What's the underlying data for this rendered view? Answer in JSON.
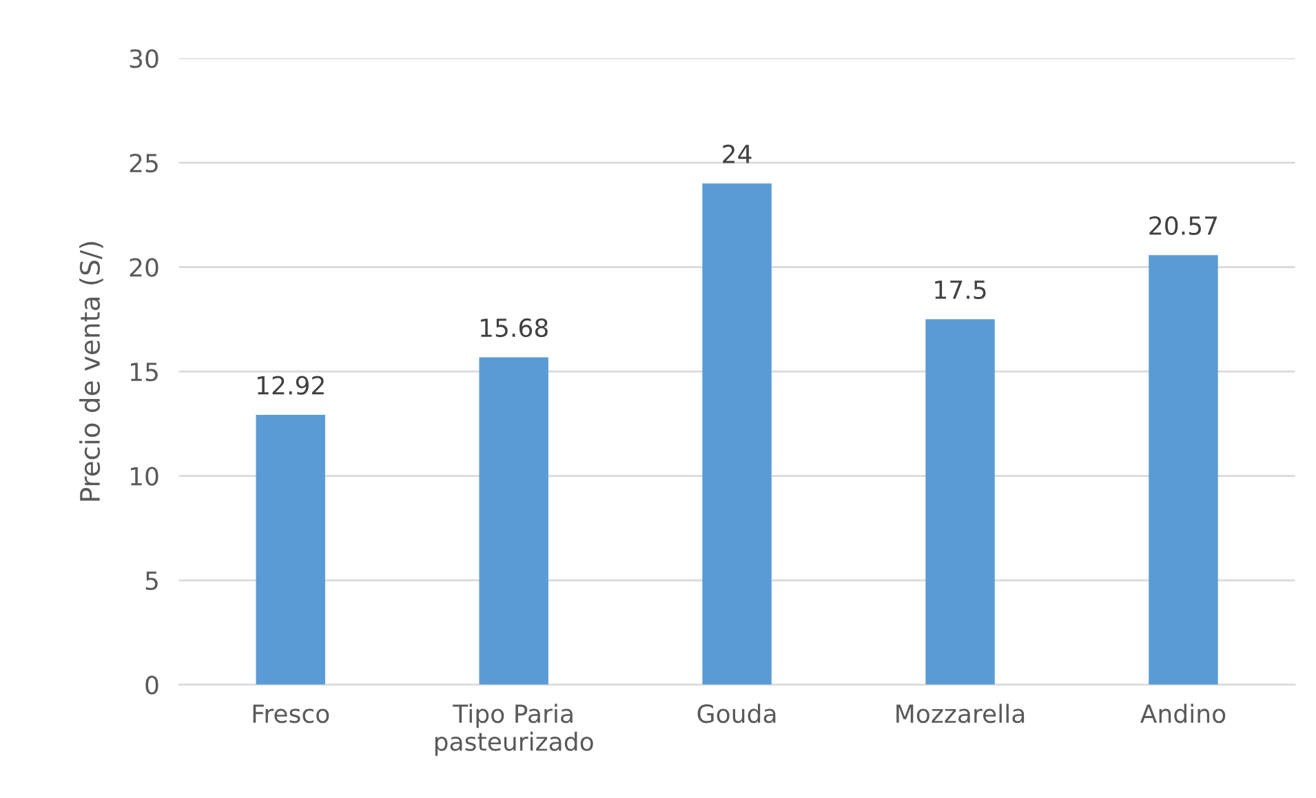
{
  "chart_data": {
    "type": "bar",
    "ylabel": "Precio de venta (S/)",
    "categories": [
      "Fresco",
      "Tipo Paria\npasteurizado",
      "Gouda",
      "Mozzarella",
      "Andino"
    ],
    "values": [
      12.92,
      15.68,
      24,
      17.5,
      20.57
    ],
    "color": "#5b9bd5",
    "ylim": [
      0,
      30
    ],
    "yticks": [
      0,
      5,
      10,
      15,
      20,
      25,
      30
    ],
    "grid": "y",
    "data_labels": true
  }
}
